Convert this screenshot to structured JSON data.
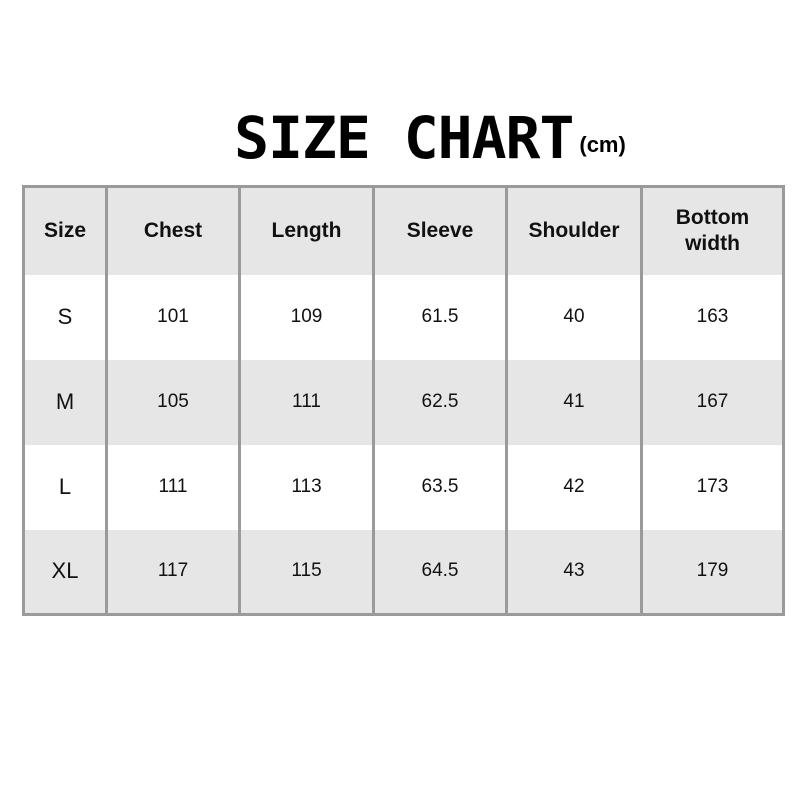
{
  "title": {
    "main": "SIZE CHART",
    "unit": "(cm)"
  },
  "colors": {
    "header_bg": "#e6e6e6",
    "alt_row_bg": "#e6e6e6",
    "border": "#9a9a9a",
    "text": "#111111"
  },
  "chart_data": {
    "type": "table",
    "title": "SIZE CHART",
    "unit": "(cm)",
    "columns": [
      "Size",
      "Chest",
      "Length",
      "Sleeve",
      "Shoulder",
      "Bottom width"
    ],
    "rows": [
      [
        "S",
        "101",
        "109",
        "61.5",
        "40",
        "163"
      ],
      [
        "M",
        "105",
        "111",
        "62.5",
        "41",
        "167"
      ],
      [
        "L",
        "111",
        "113",
        "63.5",
        "42",
        "173"
      ],
      [
        "XL",
        "117",
        "115",
        "64.5",
        "43",
        "179"
      ]
    ]
  }
}
